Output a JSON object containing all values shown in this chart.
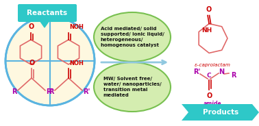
{
  "bg_color": "#ffffff",
  "reactants_label": "Reactants",
  "products_label": "Products",
  "reactants_box_color": "#2ec8c8",
  "products_box_color": "#2ec8c8",
  "circle_color": "#5ab4e0",
  "circle_fill": "#fef8e0",
  "ellipse1_fill": "#d4edb0",
  "ellipse1_color": "#78c050",
  "ellipse2_fill": "#d4edb0",
  "ellipse2_color": "#78c050",
  "ellipse1_text": "Acid mediated/ solid\nsupported/ ionic liquid/\nheterogeneous/\nhomogenous catalyst",
  "ellipse2_text": "MW/ Solvent free/\nwater/ nanoparticles/\ntransition metal\nmediated",
  "arrow_color": "#90c8e0",
  "epsilon_label": "ε–caprolactam",
  "amide_label": "amide",
  "ketone_color": "#e06868",
  "oxime_color": "#e06868",
  "R_color": "#aa00aa",
  "NOH_color": "#cc0000",
  "O_color": "#cc0000",
  "NH_color": "#cc0000",
  "ring_color": "#e06868"
}
